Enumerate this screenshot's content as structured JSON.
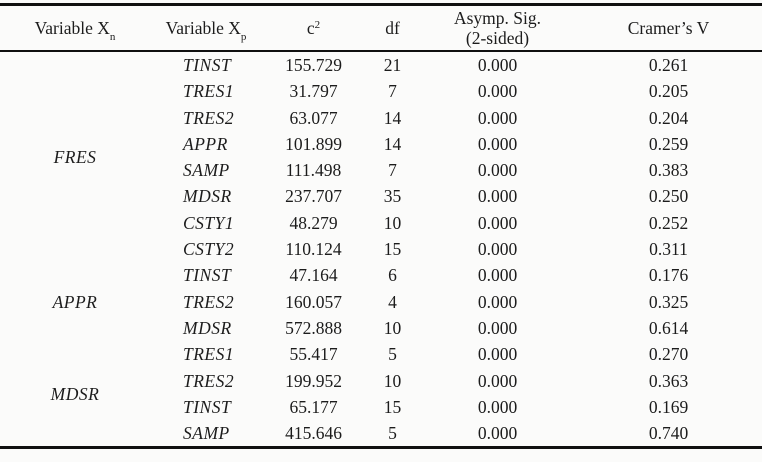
{
  "table": {
    "headers": [
      {
        "label": "Variable X",
        "sub": "n"
      },
      {
        "label": "Variable X",
        "sub": "p"
      },
      {
        "label": "c",
        "sup": "2"
      },
      {
        "label": "df"
      },
      {
        "label": "Asymp. Sig.",
        "line2": "(2-sided)"
      },
      {
        "label": "Cramer’s V"
      }
    ],
    "groups": [
      {
        "name": "FRES",
        "rows": [
          [
            "TINST",
            "155.729",
            "21",
            "0.000",
            "0.261"
          ],
          [
            "TRES1",
            "31.797",
            "7",
            "0.000",
            "0.205"
          ],
          [
            "TRES2",
            "63.077",
            "14",
            "0.000",
            "0.204"
          ],
          [
            "APPR",
            "101.899",
            "14",
            "0.000",
            "0.259"
          ],
          [
            "SAMP",
            "111.498",
            "7",
            "0.000",
            "0.383"
          ],
          [
            "MDSR",
            "237.707",
            "35",
            "0.000",
            "0.250"
          ],
          [
            "CSTY1",
            "48.279",
            "10",
            "0.000",
            "0.252"
          ],
          [
            "CSTY2",
            "110.124",
            "15",
            "0.000",
            "0.311"
          ]
        ]
      },
      {
        "name": "APPR",
        "rows": [
          [
            "TINST",
            "47.164",
            "6",
            "0.000",
            "0.176"
          ],
          [
            "TRES2",
            "160.057",
            "4",
            "0.000",
            "0.325"
          ],
          [
            "MDSR",
            "572.888",
            "10",
            "0.000",
            "0.614"
          ]
        ]
      },
      {
        "name": "MDSR",
        "rows": [
          [
            "TRES1",
            "55.417",
            "5",
            "0.000",
            "0.270"
          ],
          [
            "TRES2",
            "199.952",
            "10",
            "0.000",
            "0.363"
          ],
          [
            "TINST",
            "65.177",
            "15",
            "0.000",
            "0.169"
          ],
          [
            "SAMP",
            "415.646",
            "5",
            "0.000",
            "0.740"
          ]
        ]
      }
    ]
  }
}
